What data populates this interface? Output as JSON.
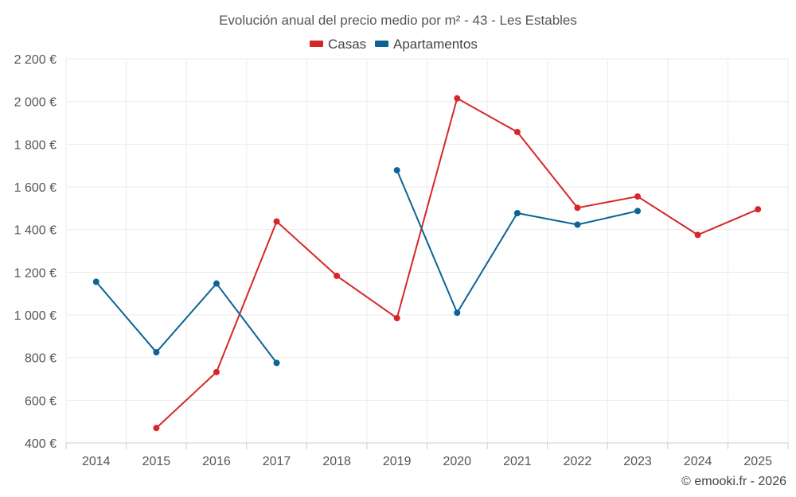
{
  "chart_data": {
    "type": "line",
    "title": "Evolución anual del precio medio por m² - 43 - Les Estables",
    "categories": [
      "2014",
      "2015",
      "2016",
      "2017",
      "2018",
      "2019",
      "2020",
      "2021",
      "2022",
      "2023",
      "2024",
      "2025"
    ],
    "series": [
      {
        "name": "Casas",
        "color": "#d62728",
        "values": [
          null,
          470,
          732,
          1438,
          1183,
          985,
          2015,
          1857,
          1502,
          1555,
          1375,
          1495
        ]
      },
      {
        "name": "Apartamentos",
        "color": "#0d6396",
        "values": [
          1155,
          825,
          1147,
          775,
          null,
          1678,
          1010,
          1477,
          1423,
          1487,
          null,
          null
        ]
      }
    ],
    "ylim": [
      400,
      2200
    ],
    "yticks": [
      400,
      600,
      800,
      1000,
      1200,
      1400,
      1600,
      1800,
      2000,
      2200
    ],
    "ytick_labels": [
      "400 €",
      "600 €",
      "800 €",
      "1 000 €",
      "1 200 €",
      "1 400 €",
      "1 600 €",
      "1 800 €",
      "2 000 €",
      "2 200 €"
    ],
    "xlabel": "",
    "ylabel": "",
    "grid": true,
    "legend_position": "top-center"
  },
  "credit": "© emooki.fr - 2026"
}
